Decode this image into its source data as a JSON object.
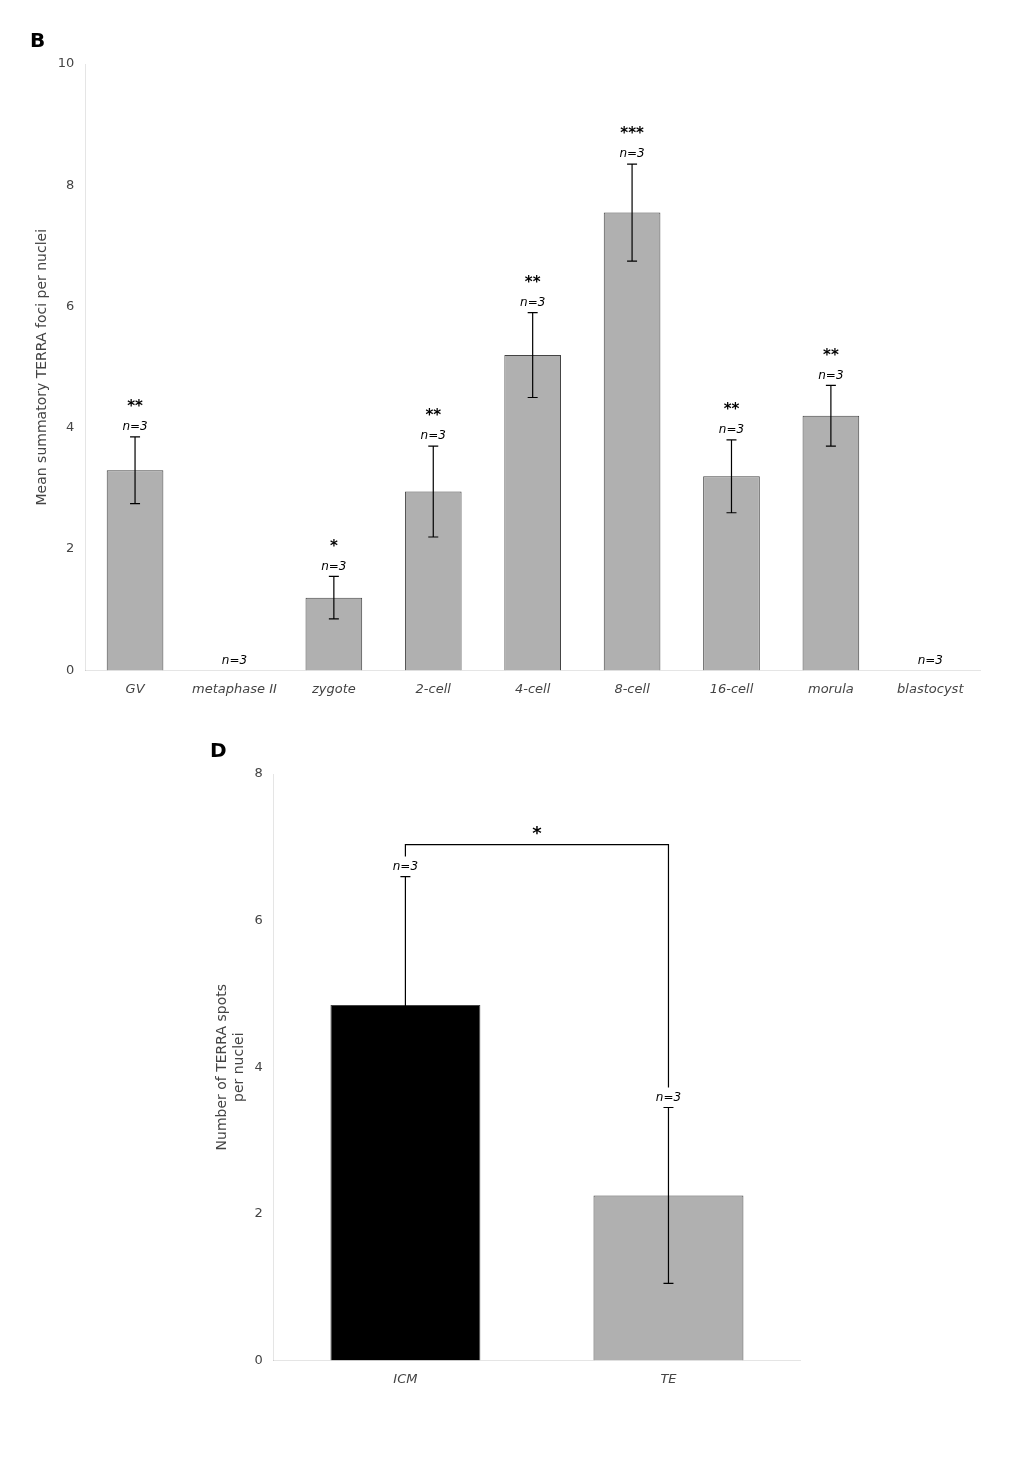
{
  "chart_data": [
    {
      "type": "bar",
      "title": "B",
      "categories": [
        "GV",
        "metaphase II",
        "zygote",
        "2-cell",
        "4-cell",
        "8-cell",
        "16-cell",
        "morula",
        "blastocyst"
      ],
      "values": [
        3.3,
        0.0,
        1.2,
        2.95,
        5.2,
        7.55,
        3.2,
        4.2,
        0.0
      ],
      "errors": [
        0.55,
        0.0,
        0.35,
        0.75,
        0.7,
        0.8,
        0.6,
        0.5,
        0.0
      ],
      "color": "#b0b0b0",
      "y_label": "Mean summatory TERRA foci per nuclei",
      "ylim": [
        0,
        10
      ],
      "yticks": [
        0,
        2,
        4,
        6,
        8,
        10
      ],
      "grid": false,
      "annotations": [
        {
          "category": "GV",
          "text": "n=3"
        },
        {
          "category": "GV",
          "text": "**"
        },
        {
          "category": "metaphase II",
          "text": "n=3"
        },
        {
          "category": "zygote",
          "text": "n=3"
        },
        {
          "category": "zygote",
          "text": "*"
        },
        {
          "category": "2-cell",
          "text": "n=3"
        },
        {
          "category": "2-cell",
          "text": "**"
        },
        {
          "category": "4-cell",
          "text": "n=3"
        },
        {
          "category": "4-cell",
          "text": "**"
        },
        {
          "category": "8-cell",
          "text": "n=3"
        },
        {
          "category": "8-cell",
          "text": "***"
        },
        {
          "category": "16-cell",
          "text": "n=3"
        },
        {
          "category": "16-cell",
          "text": "**"
        },
        {
          "category": "morula",
          "text": "n=3"
        },
        {
          "category": "morula",
          "text": "**"
        },
        {
          "category": "blastocyst",
          "text": "n=3"
        }
      ]
    },
    {
      "type": "bar",
      "title": "D",
      "categories": [
        "ICM",
        "TE"
      ],
      "values": [
        4.85,
        2.25
      ],
      "errors": [
        1.75,
        1.2
      ],
      "colors": [
        "#000000",
        "#b0b0b0"
      ],
      "y_label": "Number of TERRA spots\nper nuclei",
      "ylim": [
        0,
        8
      ],
      "yticks": [
        0,
        2,
        4,
        6,
        8
      ],
      "grid": false,
      "annotations": [
        {
          "category": "ICM",
          "text": "n=3"
        },
        {
          "category": "TE",
          "text": "n=3"
        },
        {
          "categories": [
            "ICM",
            "TE"
          ],
          "text": "*"
        }
      ]
    }
  ]
}
